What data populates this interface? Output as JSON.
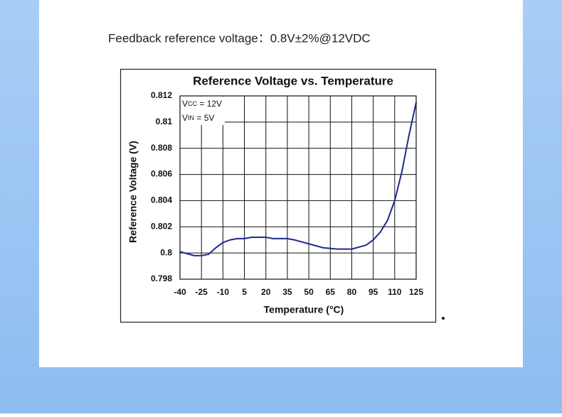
{
  "caption": "Feedback reference voltage：0.8V±2%@12VDC",
  "chart_data": {
    "type": "line",
    "title": "Reference Voltage vs. Temperature",
    "xlabel": "Temperature (°C)",
    "ylabel": "Reference Voltage (V)",
    "annotations": [
      {
        "main": "V",
        "sub": "CC",
        "rest": " = 12V"
      },
      {
        "main": "V",
        "sub": "IN",
        "rest": " = 5V"
      }
    ],
    "x": [
      -40,
      -30,
      -25,
      -20,
      -15,
      -10,
      -5,
      0,
      5,
      10,
      20,
      25,
      30,
      35,
      40,
      50,
      60,
      70,
      80,
      90,
      95,
      100,
      105,
      110,
      115,
      120,
      125
    ],
    "series": [
      {
        "color": "#1f2a8a",
        "values": [
          0.8001,
          0.7998,
          0.7998,
          0.7999,
          0.8004,
          0.8008,
          0.801,
          0.8011,
          0.8011,
          0.8012,
          0.8012,
          0.8011,
          0.8011,
          0.8011,
          0.801,
          0.8007,
          0.8004,
          0.8003,
          0.8003,
          0.8006,
          0.801,
          0.8016,
          0.8025,
          0.804,
          0.8062,
          0.809,
          0.8115
        ]
      }
    ],
    "xlim": [
      -40,
      125
    ],
    "xticks": [
      -40,
      -25,
      -10,
      5,
      20,
      35,
      50,
      65,
      80,
      95,
      110,
      125
    ],
    "ylim": [
      0.798,
      0.812
    ],
    "yticks": [
      0.798,
      0.8,
      0.802,
      0.804,
      0.806,
      0.808,
      0.81,
      0.812
    ],
    "grid": true
  }
}
